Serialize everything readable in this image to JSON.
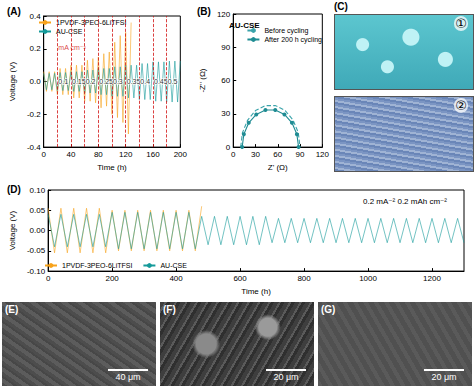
{
  "chart_data": [
    {
      "type": "line",
      "title": "(A)",
      "x_label": "Time (h)",
      "y_label": "Voltage (V)",
      "x": [
        0,
        4,
        8,
        12,
        16,
        20,
        24,
        28,
        32,
        36,
        40,
        44,
        48,
        52,
        56,
        60,
        64,
        68,
        72,
        76,
        80,
        84,
        88,
        92,
        96,
        100,
        104,
        108,
        112,
        116,
        120,
        124,
        128,
        132,
        136,
        140,
        144,
        148,
        152,
        156,
        160,
        164,
        168,
        172,
        176,
        180,
        184,
        188,
        192,
        196,
        200
      ],
      "series": [
        {
          "name": "1PVDF-3PEO-6LiTFSI",
          "color": "#f7a21b",
          "values": [
            0.06,
            -0.06,
            0.06,
            -0.06,
            0.06,
            -0.08,
            0.08,
            -0.08,
            0.08,
            -0.08,
            0.1,
            -0.1,
            0.1,
            -0.1,
            0.1,
            -0.12,
            0.13,
            -0.12,
            0.14,
            -0.13,
            0.15,
            -0.16,
            0.17,
            -0.15,
            0.18,
            -0.2,
            0.24,
            -0.22,
            0.28,
            -0.25,
            0.3,
            -0.32,
            0.36,
            null,
            null,
            null,
            null,
            null,
            null,
            null,
            null,
            null,
            null,
            null,
            null,
            null,
            null,
            null,
            null,
            null,
            null
          ]
        },
        {
          "name": "AU-CSE",
          "color": "#159a9a",
          "values": [
            0.05,
            -0.05,
            0.05,
            -0.05,
            0.05,
            -0.055,
            0.055,
            -0.055,
            0.055,
            -0.055,
            0.06,
            -0.06,
            0.06,
            -0.06,
            0.06,
            -0.07,
            0.07,
            -0.07,
            0.07,
            -0.07,
            0.08,
            -0.08,
            0.08,
            -0.08,
            0.08,
            -0.09,
            0.09,
            -0.09,
            0.09,
            -0.09,
            0.1,
            -0.1,
            0.1,
            -0.1,
            0.1,
            -0.11,
            0.11,
            -0.11,
            0.11,
            -0.11,
            0.12,
            -0.12,
            0.12,
            -0.12,
            0.12,
            -0.125,
            0.125,
            -0.125,
            0.125,
            -0.125,
            0.125
          ]
        }
      ],
      "xlim": [
        0,
        200
      ],
      "xticks": [
        0,
        40,
        80,
        120,
        160,
        200
      ],
      "ylim": [
        -0.4,
        0.4
      ],
      "yticks": [
        -0.4,
        -0.2,
        {
          "value": 0,
          "label": "0.0"
        },
        0.2,
        0.4
      ],
      "annotations": {
        "unit": "mA cm⁻²",
        "steps": [
          {
            "x": 20,
            "label": "0.1"
          },
          {
            "x": 40,
            "label": "0.15"
          },
          {
            "x": 60,
            "label": "0.2"
          },
          {
            "x": 80,
            "label": "0.25"
          },
          {
            "x": 100,
            "label": "0.3"
          },
          {
            "x": 120,
            "label": "0.35"
          },
          {
            "x": 140,
            "label": "0.4"
          },
          {
            "x": 160,
            "label": "0.45"
          },
          {
            "x": 180,
            "label": "0.5"
          }
        ]
      },
      "legend": "top-left",
      "grid": false
    },
    {
      "type": "line",
      "title": "(B)",
      "subtitle": "AU-CSE",
      "x_label": "Z' (Ω)",
      "y_label": "-Z'' (Ω)",
      "series": [
        {
          "name": "Before cycling",
          "color": "#3aa3aa",
          "line_style": "dashed",
          "x": [
            10,
            12.4,
            19.4,
            30,
            43,
            57,
            70,
            80.6,
            87.6,
            90
          ],
          "values": [
            0,
            13,
            24.4,
            32.9,
            37.4,
            37.4,
            32.9,
            24.4,
            13,
            0
          ]
        },
        {
          "name": "After 200 h cycling",
          "color": "#1f8c93",
          "marker": "circle",
          "x": [
            12,
            14.3,
            20.9,
            31,
            43.4,
            56.6,
            69,
            79.1,
            85.7,
            88
          ],
          "values": [
            0,
            11.6,
            21.9,
            29.4,
            33.5,
            33.5,
            29.4,
            21.9,
            11.6,
            0
          ]
        }
      ],
      "xlim": [
        0,
        120
      ],
      "xticks": [
        0,
        30,
        60,
        90,
        120
      ],
      "ylim": [
        0,
        120
      ],
      "yticks": [
        0,
        30,
        60,
        90,
        120
      ],
      "legend": "top-right",
      "grid": false
    },
    {
      "type": "line",
      "title": "(D)",
      "x_label": "Time (h)",
      "y_label": "Voltage (V)",
      "annotations": [
        "0.2 mA⁻² 0.2 mAh cm⁻²"
      ],
      "x": [
        0,
        20,
        40,
        60,
        80,
        100,
        120,
        140,
        160,
        180,
        200,
        220,
        240,
        260,
        280,
        300,
        320,
        340,
        360,
        380,
        400,
        420,
        440,
        460,
        480,
        500,
        520,
        540,
        560,
        580,
        600,
        620,
        640,
        660,
        680,
        700,
        720,
        740,
        760,
        780,
        800,
        820,
        840,
        860,
        880,
        900,
        920,
        940,
        960,
        980,
        1000,
        1020,
        1040,
        1060,
        1080,
        1100,
        1120,
        1140,
        1160,
        1180,
        1200,
        1220,
        1240,
        1260,
        1280,
        1300
      ],
      "series": [
        {
          "name": "1PVDF-3PEO-6LiTFSI",
          "color": "#f7a21b",
          "values": [
            0.055,
            -0.055,
            0.055,
            -0.055,
            0.055,
            -0.055,
            0.055,
            -0.055,
            0.055,
            -0.055,
            0.05,
            -0.05,
            0.05,
            -0.05,
            0.05,
            -0.05,
            0.05,
            -0.05,
            0.05,
            -0.05,
            0.05,
            -0.05,
            0.05,
            -0.05,
            0.06,
            null,
            null,
            null,
            null,
            null,
            null,
            null,
            null,
            null,
            null,
            null,
            null,
            null,
            null,
            null,
            null,
            null,
            null,
            null,
            null,
            null,
            null,
            null,
            null,
            null,
            null,
            null,
            null,
            null,
            null,
            null,
            null,
            null,
            null,
            null,
            null,
            null,
            null,
            null,
            null,
            null
          ]
        },
        {
          "name": "AU-CSE",
          "color": "#159a9a",
          "values": [
            0.04,
            -0.04,
            0.04,
            -0.04,
            0.04,
            -0.04,
            0.04,
            -0.04,
            0.04,
            -0.04,
            0.045,
            -0.045,
            0.045,
            -0.045,
            0.045,
            -0.045,
            0.045,
            -0.045,
            0.045,
            -0.045,
            0.045,
            -0.045,
            0.045,
            -0.045,
            0.035,
            -0.035,
            0.035,
            -0.035,
            0.035,
            -0.035,
            0.035,
            -0.035,
            0.035,
            -0.035,
            0.035,
            -0.03,
            0.03,
            -0.03,
            0.03,
            -0.03,
            0.03,
            -0.03,
            0.03,
            -0.03,
            0.03,
            -0.03,
            0.03,
            -0.03,
            0.03,
            -0.03,
            0.03,
            -0.03,
            0.03,
            -0.03,
            0.03,
            -0.03,
            0.03,
            -0.03,
            0.03,
            -0.03,
            0.03,
            -0.03,
            0.03,
            -0.03,
            0.03,
            -0.03
          ]
        }
      ],
      "xlim": [
        0,
        1300
      ],
      "xticks": [
        0,
        200,
        400,
        600,
        800,
        1000,
        1200
      ],
      "ylim": [
        -0.1,
        0.1
      ],
      "yticks": [
        {
          "value": -0.1,
          "label": "-0.10"
        },
        -0.05,
        {
          "value": 0,
          "label": "0.00"
        },
        0.05,
        {
          "value": 0.1,
          "label": "0.10"
        }
      ],
      "legend": "bottom-left",
      "grid": false
    }
  ],
  "image_panels": [
    {
      "label": "(C)",
      "marks": [
        "①",
        "②"
      ]
    },
    {
      "label": "(E)",
      "scale_bar": "40 μm"
    },
    {
      "label": "(F)",
      "scale_bar": "20 μm"
    },
    {
      "label": "(G)",
      "scale_bar": "20 μm"
    }
  ]
}
